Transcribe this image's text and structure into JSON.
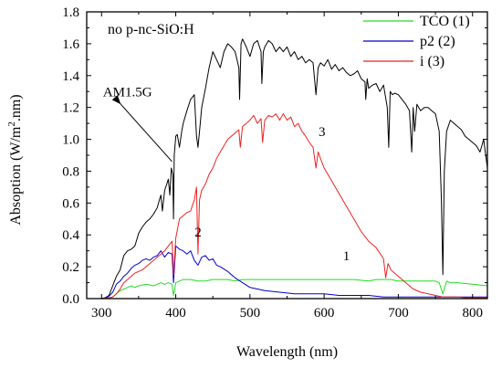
{
  "chart_data": {
    "type": "line",
    "title": "",
    "subtitle": "no p-nc-SiO:H",
    "xlabel": "Wavelength (nm)",
    "ylabel": {
      "pre": "Absoption (W/m",
      "sup": "2",
      "post": ".nm)"
    },
    "xlim": [
      280,
      820
    ],
    "ylim": [
      0,
      1.8
    ],
    "xticks": [
      300,
      400,
      500,
      600,
      700,
      800
    ],
    "yticks": [
      0.0,
      0.2,
      0.4,
      0.6,
      0.8,
      1.0,
      1.2,
      1.4,
      1.6,
      1.8
    ],
    "grid": false,
    "legend_position": "top-right",
    "annotations": [
      {
        "text": "AM1.5G",
        "x": 335,
        "y": 1.27,
        "arrow_to": [
          395,
          0.86
        ]
      },
      {
        "text": "3",
        "x": 597,
        "y": 1.02
      },
      {
        "text": "2",
        "x": 430,
        "y": 0.39
      },
      {
        "text": "1",
        "x": 630,
        "y": 0.24
      }
    ],
    "series": [
      {
        "name": "AM1.5G",
        "legend": false,
        "color": "#000000",
        "x": [
          280,
          300,
          305,
          310,
          315,
          320,
          325,
          330,
          335,
          340,
          345,
          350,
          355,
          360,
          365,
          370,
          375,
          378,
          380,
          382,
          385,
          388,
          390,
          392,
          394,
          396,
          397,
          398,
          400,
          402,
          405,
          408,
          410,
          415,
          420,
          425,
          428,
          430,
          432,
          435,
          440,
          445,
          450,
          455,
          460,
          465,
          470,
          475,
          480,
          485,
          486,
          488,
          490,
          495,
          500,
          505,
          510,
          515,
          516,
          518,
          520,
          525,
          530,
          535,
          540,
          545,
          550,
          555,
          560,
          565,
          570,
          575,
          580,
          585,
          589,
          592,
          595,
          600,
          605,
          610,
          615,
          620,
          625,
          630,
          635,
          640,
          645,
          650,
          655,
          656,
          658,
          660,
          665,
          670,
          675,
          680,
          685,
          687,
          689,
          692,
          695,
          700,
          705,
          710,
          715,
          718,
          720,
          722,
          725,
          730,
          735,
          740,
          745,
          750,
          755,
          758,
          760,
          762,
          765,
          770,
          775,
          780,
          785,
          790,
          795,
          800,
          805,
          810,
          815,
          820
        ],
        "y": [
          0,
          0,
          0.005,
          0.02,
          0.08,
          0.14,
          0.18,
          0.27,
          0.3,
          0.31,
          0.33,
          0.41,
          0.45,
          0.48,
          0.5,
          0.53,
          0.57,
          0.62,
          0.65,
          0.55,
          0.68,
          0.72,
          0.75,
          0.65,
          0.82,
          0.78,
          0.5,
          0.9,
          1.02,
          1.03,
          0.95,
          1.05,
          1.1,
          1.18,
          1.25,
          1.28,
          1.02,
          0.95,
          1.05,
          1.2,
          1.32,
          1.45,
          1.55,
          1.5,
          1.45,
          1.55,
          1.6,
          1.58,
          1.55,
          1.45,
          1.25,
          1.6,
          1.63,
          1.58,
          1.52,
          1.6,
          1.62,
          1.55,
          1.35,
          1.55,
          1.58,
          1.62,
          1.6,
          1.55,
          1.58,
          1.55,
          1.58,
          1.52,
          1.55,
          1.5,
          1.52,
          1.48,
          1.5,
          1.48,
          1.28,
          1.45,
          1.48,
          1.46,
          1.5,
          1.44,
          1.47,
          1.43,
          1.45,
          1.42,
          1.4,
          1.41,
          1.43,
          1.38,
          1.36,
          1.25,
          1.38,
          1.32,
          1.34,
          1.35,
          1.3,
          1.34,
          1.2,
          0.95,
          1.3,
          1.28,
          1.29,
          1.28,
          1.25,
          1.22,
          1.18,
          0.92,
          1.2,
          1.05,
          1.22,
          1.18,
          1.2,
          1.2,
          1.18,
          1.16,
          1.05,
          0.62,
          0.15,
          0.8,
          1.05,
          1.12,
          1.1,
          1.08,
          1.06,
          1.02,
          1.0,
          0.98,
          0.96,
          0.92,
          1.0,
          0.82
        ]
      },
      {
        "name": "TCO (1)",
        "color": "#22dd22",
        "x": [
          280,
          300,
          310,
          315,
          320,
          325,
          330,
          335,
          340,
          345,
          350,
          360,
          370,
          380,
          385,
          390,
          395,
          397,
          400,
          405,
          410,
          420,
          430,
          440,
          450,
          460,
          470,
          480,
          490,
          500,
          520,
          540,
          560,
          580,
          600,
          620,
          640,
          660,
          670,
          680,
          690,
          700,
          720,
          740,
          750,
          755,
          760,
          765,
          770,
          780,
          800,
          820
        ],
        "y": [
          0,
          0,
          0.005,
          0.01,
          0.03,
          0.05,
          0.06,
          0.07,
          0.08,
          0.07,
          0.08,
          0.09,
          0.08,
          0.1,
          0.09,
          0.1,
          0.09,
          0.02,
          0.1,
          0.11,
          0.12,
          0.12,
          0.11,
          0.11,
          0.12,
          0.12,
          0.12,
          0.11,
          0.12,
          0.12,
          0.12,
          0.12,
          0.12,
          0.12,
          0.12,
          0.12,
          0.12,
          0.11,
          0.12,
          0.12,
          0.12,
          0.11,
          0.11,
          0.11,
          0.11,
          0.1,
          0.03,
          0.11,
          0.1,
          0.1,
          0.09,
          0.08
        ]
      },
      {
        "name": "p2 (2)",
        "color": "#0000cc",
        "x": [
          280,
          300,
          305,
          310,
          315,
          320,
          325,
          330,
          335,
          340,
          345,
          350,
          355,
          360,
          365,
          370,
          375,
          380,
          385,
          390,
          395,
          397,
          400,
          405,
          410,
          415,
          420,
          425,
          430,
          435,
          440,
          445,
          450,
          455,
          460,
          470,
          480,
          490,
          500,
          510,
          520,
          540,
          560,
          580,
          600,
          620,
          640,
          660,
          680,
          700,
          720,
          740,
          760,
          780,
          800,
          820
        ],
        "y": [
          0,
          0,
          0.005,
          0.015,
          0.04,
          0.09,
          0.11,
          0.14,
          0.16,
          0.19,
          0.21,
          0.22,
          0.24,
          0.25,
          0.24,
          0.26,
          0.27,
          0.3,
          0.26,
          0.29,
          0.28,
          0.1,
          0.33,
          0.31,
          0.3,
          0.28,
          0.3,
          0.24,
          0.21,
          0.26,
          0.27,
          0.24,
          0.25,
          0.21,
          0.2,
          0.17,
          0.13,
          0.1,
          0.07,
          0.06,
          0.05,
          0.04,
          0.03,
          0.03,
          0.03,
          0.02,
          0.02,
          0.02,
          0.01,
          0.01,
          0.01,
          0.01,
          0.01,
          0.01,
          0.01,
          0.01
        ]
      },
      {
        "name": "i (3)",
        "color": "#ee2222",
        "x": [
          280,
          300,
          310,
          315,
          320,
          325,
          330,
          335,
          340,
          345,
          350,
          355,
          360,
          365,
          370,
          375,
          380,
          385,
          390,
          395,
          397,
          400,
          405,
          410,
          415,
          420,
          425,
          428,
          430,
          432,
          435,
          440,
          445,
          450,
          455,
          460,
          465,
          470,
          475,
          480,
          485,
          487,
          490,
          495,
          500,
          505,
          510,
          515,
          517,
          520,
          525,
          530,
          535,
          540,
          545,
          550,
          555,
          560,
          565,
          570,
          575,
          580,
          585,
          589,
          592,
          595,
          600,
          605,
          610,
          615,
          620,
          630,
          640,
          650,
          660,
          670,
          680,
          683,
          686,
          690,
          700,
          710,
          720,
          730,
          740,
          750,
          760,
          770,
          780,
          790,
          800,
          810,
          820
        ],
        "y": [
          0,
          0,
          0.005,
          0.01,
          0.03,
          0.06,
          0.1,
          0.12,
          0.14,
          0.16,
          0.17,
          0.18,
          0.2,
          0.22,
          0.24,
          0.26,
          0.28,
          0.3,
          0.33,
          0.36,
          0.15,
          0.38,
          0.5,
          0.52,
          0.54,
          0.55,
          0.62,
          0.7,
          0.28,
          0.62,
          0.68,
          0.72,
          0.78,
          0.82,
          0.88,
          0.92,
          0.96,
          1.0,
          1.02,
          1.04,
          1.06,
          0.95,
          1.08,
          1.1,
          1.12,
          1.15,
          1.1,
          1.13,
          0.98,
          1.12,
          1.15,
          1.14,
          1.16,
          1.12,
          1.16,
          1.12,
          1.14,
          1.08,
          1.1,
          1.05,
          1.02,
          0.98,
          0.95,
          0.82,
          0.92,
          0.88,
          0.82,
          0.78,
          0.74,
          0.7,
          0.66,
          0.58,
          0.5,
          0.42,
          0.36,
          0.32,
          0.25,
          0.13,
          0.22,
          0.18,
          0.14,
          0.1,
          0.06,
          0.04,
          0.03,
          0.02,
          0.01,
          0.01,
          0.01,
          0.005,
          0.005,
          0.005,
          0.005
        ]
      }
    ]
  }
}
